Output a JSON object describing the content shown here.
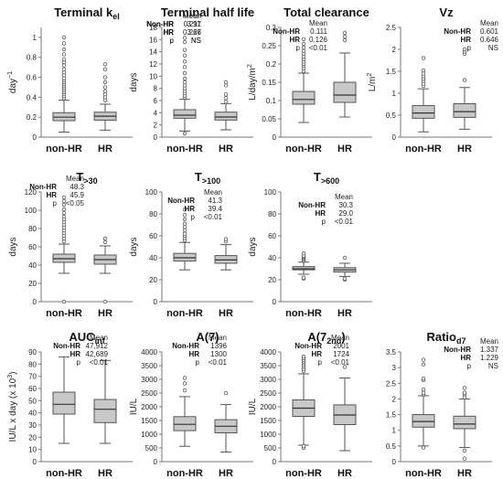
{
  "chart_data": [
    {
      "type": "box",
      "title": "Terminal k",
      "title_sub": "el",
      "ylabel": "day",
      "ylabel_sup": "−1",
      "ylim": [
        0,
        1.1
      ],
      "yticks": [
        0,
        0.2,
        0.4,
        0.6,
        0.8,
        1
      ],
      "ytick_labels": [
        "0",
        "0.2",
        "0.4",
        "0.6",
        "0.8",
        "1"
      ],
      "categories": [
        "non-HR",
        "HR"
      ],
      "boxes": [
        {
          "whislo": 0.05,
          "q1": 0.165,
          "med": 0.2,
          "q3": 0.245,
          "whishi": 0.37,
          "fliers": [
            0.39,
            0.41,
            0.43,
            0.45,
            0.47,
            0.49,
            0.51,
            0.53,
            0.55,
            0.57,
            0.59,
            0.62,
            0.65,
            0.68,
            0.72,
            0.75,
            0.78,
            0.83,
            0.88,
            0.94,
            1.0
          ]
        },
        {
          "whislo": 0.07,
          "q1": 0.17,
          "med": 0.21,
          "q3": 0.25,
          "whishi": 0.33,
          "fliers": [
            0.37,
            0.4,
            0.43,
            0.46,
            0.5,
            0.55,
            0.6,
            0.68,
            0.73
          ]
        }
      ],
      "stats": {
        "header": "Mean",
        "rows": [
          {
            "label": "Non-HR",
            "value": "0.211"
          },
          {
            "label": "HR",
            "value": "0.226"
          },
          {
            "label": "p",
            "value": "NS"
          }
        ]
      }
    },
    {
      "type": "box",
      "title": "Terminal half life",
      "ylabel": "days",
      "ylim": [
        0,
        18
      ],
      "yticks": [
        0,
        2,
        4,
        6,
        8,
        10,
        12,
        14,
        16,
        18
      ],
      "ytick_labels": [
        "0",
        "2",
        "4",
        "6",
        "8",
        "10",
        "12",
        "14",
        "16",
        "18"
      ],
      "categories": [
        "non-HR",
        "HR"
      ],
      "boxes": [
        {
          "whislo": 1.0,
          "q1": 3.1,
          "med": 3.6,
          "q3": 4.5,
          "whishi": 6.2,
          "fliers": [
            0.6,
            6.5,
            6.8,
            7.2,
            7.6,
            8.0,
            8.5,
            9.0,
            9.6,
            10.5,
            11.5,
            12.4,
            13.4,
            14.3,
            15.6,
            16.3
          ]
        },
        {
          "whislo": 1.2,
          "q1": 2.8,
          "med": 3.3,
          "q3": 4.1,
          "whishi": 5.5,
          "fliers": [
            5.8,
            6.4,
            7.0,
            8.5,
            9.0
          ]
        }
      ],
      "stats": {
        "header": "Mean",
        "rows": [
          {
            "label": "Non-HR",
            "value": "3.97"
          },
          {
            "label": "HR",
            "value": "3.67"
          },
          {
            "label": "p",
            "value": "NS"
          }
        ]
      }
    },
    {
      "type": "box",
      "title": "Total clearance",
      "ylabel": "L/day/m",
      "ylabel_sup": "2",
      "ylim": [
        0,
        0.3
      ],
      "yticks": [
        0,
        0.05,
        0.1,
        0.15,
        0.2,
        0.25,
        0.3
      ],
      "ytick_labels": [
        "0",
        "0.05",
        "0.1",
        "0.15",
        "0.2",
        "0.25",
        "0.3"
      ],
      "categories": [
        "non-HR",
        "HR"
      ],
      "boxes": [
        {
          "whislo": 0.04,
          "q1": 0.09,
          "med": 0.103,
          "q3": 0.125,
          "whishi": 0.175,
          "fliers": [
            0.18,
            0.188,
            0.195,
            0.2,
            0.207,
            0.213,
            0.22,
            0.228,
            0.236,
            0.245,
            0.255,
            0.268
          ]
        },
        {
          "whislo": 0.055,
          "q1": 0.095,
          "med": 0.115,
          "q3": 0.15,
          "whishi": 0.23,
          "fliers": [
            0.265,
            0.275,
            0.285
          ]
        }
      ],
      "stats": {
        "header": "Mean",
        "rows": [
          {
            "label": "Non-HR",
            "value": "0.111"
          },
          {
            "label": "HR",
            "value": "0.126"
          },
          {
            "label": "p",
            "value": "<0.01"
          }
        ]
      }
    },
    {
      "type": "box",
      "title": "Vz",
      "ylabel": "L/m",
      "ylabel_sup": "2",
      "ylim": [
        0,
        2.5
      ],
      "yticks": [
        0,
        0.5,
        1,
        1.5,
        2,
        2.5
      ],
      "ytick_labels": [
        "0",
        "0.5",
        "1",
        "1.5",
        "2",
        "2.5"
      ],
      "categories": [
        "non-HR",
        "HR"
      ],
      "boxes": [
        {
          "whislo": 0.12,
          "q1": 0.43,
          "med": 0.55,
          "q3": 0.72,
          "whishi": 1.1,
          "fliers": [
            1.17,
            1.22,
            1.28,
            1.33,
            1.39,
            1.45,
            1.52,
            1.8
          ]
        },
        {
          "whislo": 0.18,
          "q1": 0.45,
          "med": 0.58,
          "q3": 0.76,
          "whishi": 1.13,
          "fliers": [
            1.3,
            1.9,
            1.95,
            2.0
          ]
        }
      ],
      "stats": {
        "header": "Mean",
        "rows": [
          {
            "label": "Non-HR",
            "value": "0.601"
          },
          {
            "label": "HR",
            "value": "0.646"
          },
          {
            "label": "p",
            "value": "NS"
          }
        ]
      }
    },
    {
      "type": "box",
      "title": "T",
      "title_sub": ">30",
      "ylabel": "days",
      "ylim": [
        0,
        120
      ],
      "yticks": [
        0,
        20,
        40,
        60,
        80,
        100,
        120
      ],
      "ytick_labels": [
        "0",
        "20",
        "40",
        "60",
        "80",
        "100",
        "120"
      ],
      "categories": [
        "non-HR",
        "HR"
      ],
      "boxes": [
        {
          "whislo": 31,
          "q1": 43,
          "med": 47,
          "q3": 52,
          "whishi": 63,
          "fliers": [
            0,
            66,
            69,
            72,
            75,
            78,
            81,
            84,
            87,
            90,
            93,
            97,
            101,
            106,
            110,
            114
          ]
        },
        {
          "whislo": 31,
          "q1": 41,
          "med": 46,
          "q3": 51,
          "whishi": 61,
          "fliers": [
            0,
            65,
            69
          ]
        }
      ],
      "stats": {
        "header": "Mean",
        "rows": [
          {
            "label": "Non-HR",
            "value": "48.3"
          },
          {
            "label": "HR",
            "value": "45.9"
          },
          {
            "label": "p",
            "value": "<0.05"
          }
        ]
      }
    },
    {
      "type": "box",
      "title": "T",
      "title_sub": ">100",
      "ylabel": "days",
      "ylim": [
        0,
        100
      ],
      "yticks": [
        0,
        20,
        40,
        60,
        80,
        100
      ],
      "ytick_labels": [
        "0",
        "20",
        "40",
        "60",
        "80",
        "100"
      ],
      "categories": [
        "non-HR",
        "HR"
      ],
      "boxes": [
        {
          "whislo": 29,
          "q1": 37,
          "med": 40,
          "q3": 44,
          "whishi": 54,
          "fliers": [
            56,
            58,
            60,
            62,
            65,
            68,
            71,
            75,
            79,
            84
          ]
        },
        {
          "whislo": 29,
          "q1": 35,
          "med": 38,
          "q3": 42,
          "whishi": 52,
          "fliers": [
            55,
            57
          ]
        }
      ],
      "stats": {
        "header": "Mean",
        "rows": [
          {
            "label": "Non-HR",
            "value": "41.3"
          },
          {
            "label": "HR",
            "value": "39.4"
          },
          {
            "label": "p",
            "value": "<0.01"
          }
        ]
      }
    },
    {
      "type": "box",
      "title": "T",
      "title_sub": ">600",
      "ylabel": "days",
      "ylim": [
        0,
        100
      ],
      "yticks": [
        0,
        20,
        40,
        60,
        80,
        100
      ],
      "ytick_labels": [
        "0",
        "20",
        "40",
        "60",
        "80",
        "100"
      ],
      "categories": [
        "non-HR",
        "HR"
      ],
      "boxes": [
        {
          "whislo": 25,
          "q1": 29,
          "med": 30,
          "q3": 32,
          "whishi": 36,
          "fliers": [
            21,
            22,
            37,
            38,
            39,
            40,
            41,
            42,
            44
          ]
        },
        {
          "whislo": 23,
          "q1": 27,
          "med": 29,
          "q3": 31,
          "whishi": 35,
          "fliers": [
            20,
            21,
            40
          ]
        }
      ],
      "stats": {
        "header": "Mean",
        "rows": [
          {
            "label": "Non-HR",
            "value": "30.3"
          },
          {
            "label": "HR",
            "value": "29.0"
          },
          {
            "label": "p",
            "value": "<0.01"
          }
        ]
      }
    },
    {
      "type": "box",
      "title": "AUC",
      "title_sub": "inf",
      "ylabel": "IU/L x day (x 10",
      "ylabel_sup": "3",
      "ylabel_end": ")",
      "ylim": [
        0,
        90
      ],
      "yticks": [
        0,
        10,
        20,
        30,
        40,
        50,
        60,
        70,
        80,
        90
      ],
      "ytick_labels": [
        "0",
        "10",
        "20",
        "30",
        "40",
        "50",
        "60",
        "70",
        "80",
        "90"
      ],
      "categories": [
        "non-HR",
        "HR"
      ],
      "boxes": [
        {
          "whislo": 15,
          "q1": 39,
          "med": 47,
          "q3": 57,
          "whishi": 86,
          "fliers": []
        },
        {
          "whislo": 15,
          "q1": 32,
          "med": 43,
          "q3": 51,
          "whishi": 83,
          "fliers": []
        }
      ],
      "stats": {
        "header": "Mean",
        "rows": [
          {
            "label": "Non-HR",
            "value": "47,912"
          },
          {
            "label": "HR",
            "value": "42,689"
          },
          {
            "label": "p",
            "value": "<0.01"
          }
        ]
      }
    },
    {
      "type": "box",
      "title": "A(7)",
      "ylabel": "IU/L",
      "ylim": [
        0,
        4000
      ],
      "yticks": [
        0,
        500,
        1000,
        1500,
        2000,
        2500,
        3000,
        3500,
        4000
      ],
      "ytick_labels": [
        "0",
        "500",
        "1000",
        "1500",
        "2000",
        "2500",
        "3000",
        "3500",
        "4000"
      ],
      "categories": [
        "non-HR",
        "HR"
      ],
      "boxes": [
        {
          "whislo": 560,
          "q1": 1130,
          "med": 1360,
          "q3": 1640,
          "whishi": 2370,
          "fliers": [
            2600,
            2850,
            3050
          ]
        },
        {
          "whislo": 350,
          "q1": 1050,
          "med": 1290,
          "q3": 1530,
          "whishi": 2080,
          "fliers": [
            2500
          ]
        }
      ],
      "stats": {
        "header": "Mean",
        "rows": [
          {
            "label": "Non-HR",
            "value": "1396"
          },
          {
            "label": "HR",
            "value": "1300"
          },
          {
            "label": "p",
            "value": "<0.01"
          }
        ]
      }
    },
    {
      "type": "box",
      "title": "A(7",
      "title_sub": "2nd",
      "title_end": ")",
      "ylabel": "IU/L",
      "ylim": [
        0,
        4000
      ],
      "yticks": [
        0,
        500,
        1000,
        1500,
        2000,
        2500,
        3000,
        3500,
        4000
      ],
      "ytick_labels": [
        "0",
        "500",
        "1000",
        "1500",
        "2000",
        "2500",
        "3000",
        "3500",
        "4000"
      ],
      "categories": [
        "non-HR",
        "HR"
      ],
      "boxes": [
        {
          "whislo": 600,
          "q1": 1650,
          "med": 1950,
          "q3": 2250,
          "whishi": 3200,
          "fliers": [
            500,
            560,
            3300,
            3380,
            3450,
            3520,
            3590,
            3650,
            3710,
            3770,
            3830
          ]
        },
        {
          "whislo": 400,
          "q1": 1350,
          "med": 1700,
          "q3": 2070,
          "whishi": 3050,
          "fliers": [
            3450
          ]
        }
      ],
      "stats": {
        "header": "Mean",
        "rows": [
          {
            "label": "Non-HR",
            "value": "2001"
          },
          {
            "label": "HR",
            "value": "1724"
          },
          {
            "label": "p",
            "value": "<0.01"
          }
        ]
      }
    },
    {
      "type": "box",
      "title": "Ratio",
      "title_sub": "d7",
      "ylabel": "",
      "ylim": [
        0,
        3.5
      ],
      "yticks": [
        0,
        0.5,
        1,
        1.5,
        2,
        2.5,
        3,
        3.5
      ],
      "ytick_labels": [
        "0",
        "0.5",
        "1",
        "1.5",
        "2",
        "2.5",
        "3",
        "3.5"
      ],
      "categories": [
        "non-HR",
        "HR"
      ],
      "boxes": [
        {
          "whislo": 0.5,
          "q1": 1.1,
          "med": 1.28,
          "q3": 1.5,
          "whishi": 2.1,
          "fliers": [
            0.45,
            2.15,
            2.2,
            2.3,
            2.6,
            2.65,
            3.1,
            3.25
          ]
        },
        {
          "whislo": 0.45,
          "q1": 1.05,
          "med": 1.2,
          "q3": 1.45,
          "whishi": 2.0,
          "fliers": [
            0.1,
            0.35,
            2.05,
            2.15,
            2.2,
            2.35
          ]
        }
      ],
      "stats": {
        "header": "Mean",
        "rows": [
          {
            "label": "Non-HR",
            "value": "1.337"
          },
          {
            "label": "HR",
            "value": "1.229"
          },
          {
            "label": "p",
            "value": "NS"
          }
        ]
      }
    }
  ],
  "colors": {
    "box_fill": "#c8c8c8",
    "line": "#555555",
    "axis": "#777777",
    "text": "#111111"
  }
}
